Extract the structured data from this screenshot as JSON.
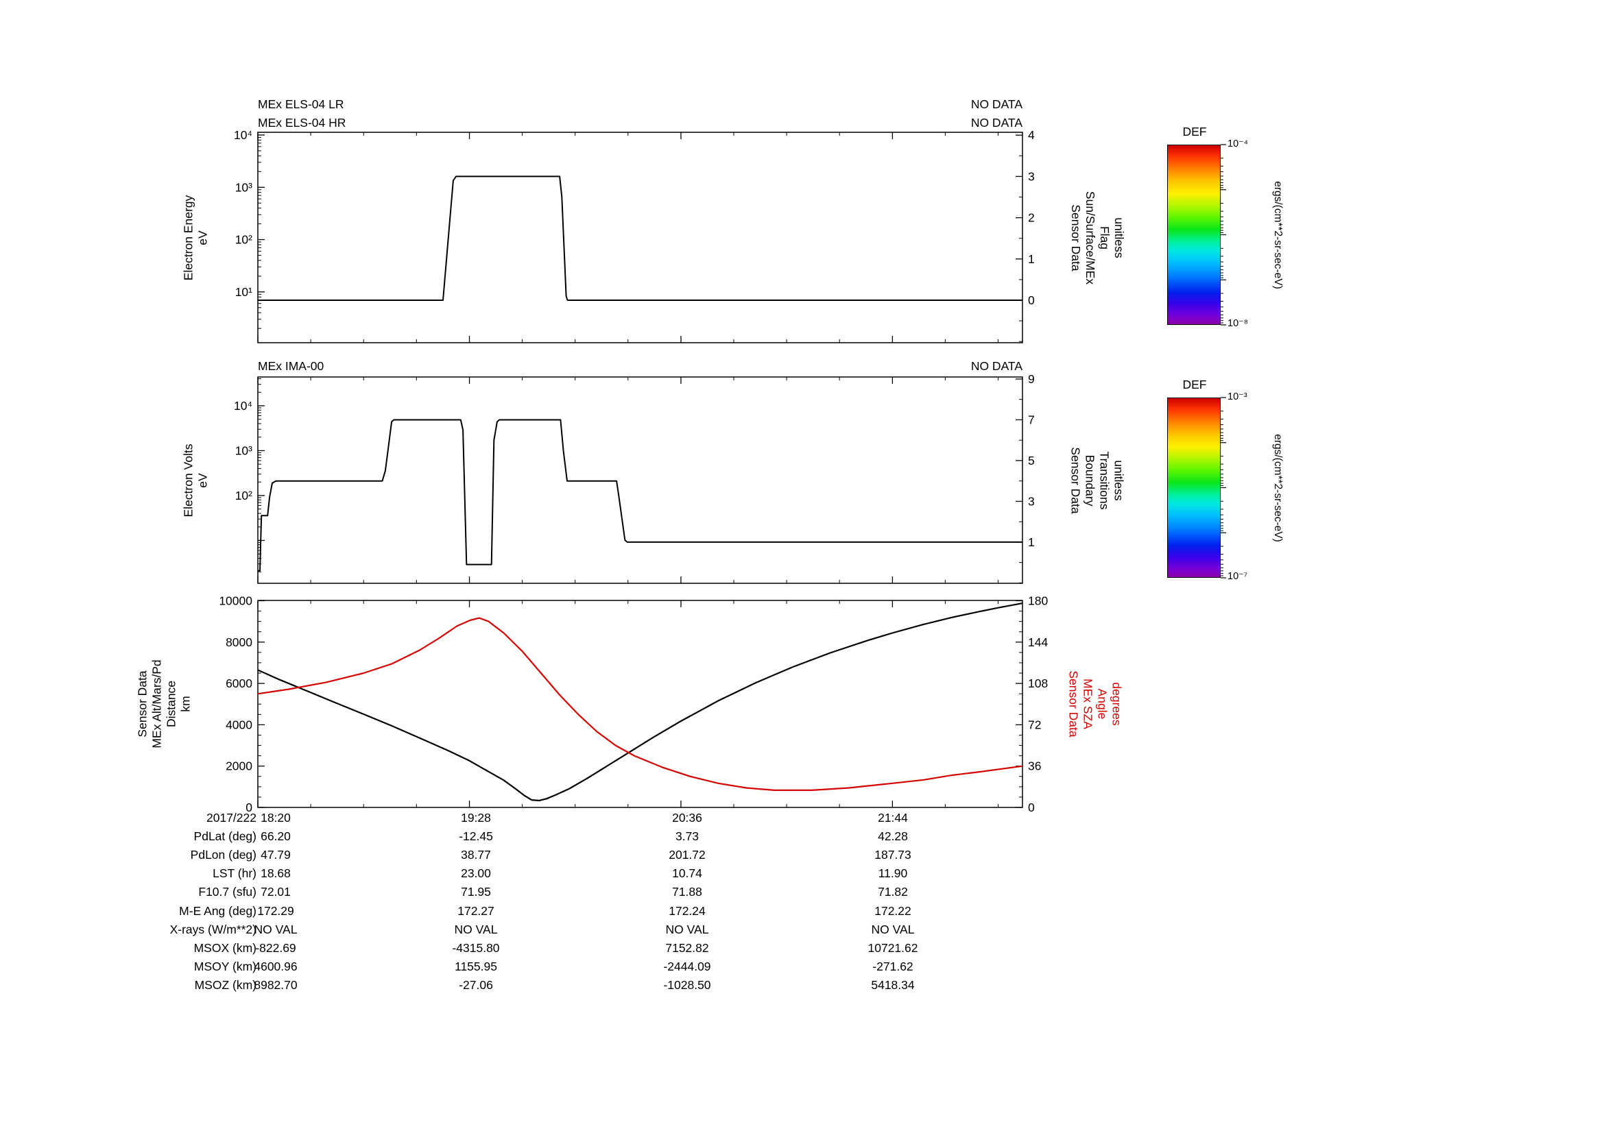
{
  "panels": [
    {
      "id": "els",
      "title_rows": [
        {
          "left": "MEx ELS-04 LR",
          "right": "NO DATA"
        },
        {
          "left": "MEx ELS-04 HR",
          "right": "NO DATA"
        }
      ],
      "left_axis_label": [
        "Electron Energy",
        "eV"
      ],
      "right_axis_label": [
        "Sensor Data",
        "Sun/Surface/MEx",
        "Flag",
        "unitless"
      ],
      "right_label_color": "#000000"
    },
    {
      "id": "ima",
      "title_rows": [
        {
          "left": "MEx IMA-00",
          "right": "NO DATA"
        }
      ],
      "left_axis_label": [
        "Electron Volts",
        "eV"
      ],
      "right_axis_label": [
        "Sensor Data",
        "Boundary",
        "Transitions",
        "unitless"
      ],
      "right_label_color": "#000000"
    },
    {
      "id": "ephem",
      "title_rows": [],
      "left_axis_label": [
        "Sensor Data",
        "MEx Alt/Mars/Pd",
        "Distance",
        "km"
      ],
      "right_axis_label": [
        "Sensor Data",
        "MEx SZA",
        "Angle",
        "degrees"
      ],
      "right_label_color": "#d40000"
    }
  ],
  "colorbars": [
    {
      "title": "DEF",
      "top_label": "10⁻⁴",
      "bottom_label": "10⁻⁸",
      "unit": "ergs/(cm**2-sr-sec-eV)"
    },
    {
      "title": "DEF",
      "top_label": "10⁻³",
      "bottom_label": "10⁻⁷",
      "unit": "ergs/(cm**2-sr-sec-eV)"
    }
  ],
  "colorbar_gradient": [
    "#cc0000 0%",
    "#ff3300 6%",
    "#ff8800 14%",
    "#ffcc00 21%",
    "#fdf000 27%",
    "#baf600 33%",
    "#62f600 40%",
    "#0ce619 47%",
    "#00efa0 54%",
    "#00e8e0 59%",
    "#00baff 66%",
    "#0076ff 74%",
    "#0022ee 82%",
    "#3a00e8 89%",
    "#7500d8 95%",
    "#8a00a8 100%"
  ],
  "table": {
    "rows": [
      {
        "label": "2017/222",
        "values": [
          "18:20",
          "19:28",
          "20:36",
          "21:44"
        ]
      },
      {
        "label": "PdLat (deg)",
        "values": [
          "66.20",
          "-12.45",
          "3.73",
          "42.28"
        ]
      },
      {
        "label": "PdLon (deg)",
        "values": [
          "47.79",
          "38.77",
          "201.72",
          "187.73"
        ]
      },
      {
        "label": "LST (hr)",
        "values": [
          "18.68",
          "23.00",
          "10.74",
          "11.90"
        ]
      },
      {
        "label": "F10.7 (sfu)",
        "values": [
          "72.01",
          "71.95",
          "71.88",
          "71.82"
        ]
      },
      {
        "label": "M-E Ang (deg)",
        "values": [
          "172.29",
          "172.27",
          "172.24",
          "172.22"
        ]
      },
      {
        "label": "X-rays (W/m**2)",
        "values": [
          "NO VAL",
          "NO VAL",
          "NO VAL",
          "NO VAL"
        ]
      },
      {
        "label": "MSOX (km)",
        "values": [
          "-822.69",
          "-4315.80",
          "7152.82",
          "10721.62"
        ]
      },
      {
        "label": "MSOY (km)",
        "values": [
          "4600.96",
          "1155.95",
          "-2444.09",
          "-271.62"
        ]
      },
      {
        "label": "MSOZ (km)",
        "values": [
          "8982.70",
          "-27.06",
          "-1028.50",
          "5418.34"
        ]
      }
    ]
  },
  "chart_data": [
    {
      "type": "line",
      "panel": "els",
      "name": "MEx ELS-04 Sun/Surface/MEx flag",
      "x_range": [
        18.333,
        22.43
      ],
      "x_major_ticks": [
        18.333,
        19.4667,
        20.6,
        21.7333
      ],
      "x_tick_labels": [
        "18:20",
        "19:28",
        "20:36",
        "21:44"
      ],
      "x_minor_step": 0.28333,
      "left_axis": {
        "scale": "log",
        "range_log10": [
          0.028,
          4.052
        ],
        "major_ticks": [
          {
            "log10": 4,
            "label": "10⁴"
          },
          {
            "log10": 3,
            "label": "10³"
          },
          {
            "log10": 2,
            "label": "10²"
          },
          {
            "log10": 1,
            "label": "10¹"
          }
        ]
      },
      "right_axis": {
        "scale": "linear",
        "range": [
          -1.03,
          4.07
        ],
        "minor_step": 0.5,
        "major_ticks": [
          {
            "v": 4,
            "label": "4"
          },
          {
            "v": 3,
            "label": "3"
          },
          {
            "v": 2,
            "label": "2"
          },
          {
            "v": 1,
            "label": "1"
          },
          {
            "v": 0,
            "label": "0"
          }
        ]
      },
      "series": [
        {
          "name": "sun-surface-flag",
          "axis": "right",
          "color": "#000000",
          "width": 2,
          "points": [
            [
              18.333,
              0
            ],
            [
              19.325,
              0
            ],
            [
              19.38,
              2.9
            ],
            [
              19.395,
              3
            ],
            [
              19.95,
              3
            ],
            [
              19.962,
              2.5
            ],
            [
              19.985,
              0.1
            ],
            [
              19.992,
              0
            ],
            [
              22.43,
              0
            ]
          ]
        }
      ]
    },
    {
      "type": "line",
      "panel": "ima",
      "name": "MEx IMA-00 boundary transitions",
      "x_range": [
        18.333,
        22.43
      ],
      "x_major_ticks": [
        18.333,
        19.4667,
        20.6,
        21.7333
      ],
      "x_tick_labels": [
        "18:20",
        "19:28",
        "20:36",
        "21:44"
      ],
      "x_minor_step": 0.28333,
      "left_axis": {
        "scale": "log",
        "range_log10": [
          0.045,
          4.641
        ],
        "major_ticks": [
          {
            "log10": 4,
            "label": "10⁴"
          },
          {
            "log10": 3,
            "label": "10³"
          },
          {
            "log10": 2,
            "label": "10²"
          }
        ]
      },
      "right_axis": {
        "scale": "linear",
        "range": [
          -1.02,
          9.1
        ],
        "minor_step": 1,
        "major_ticks": [
          {
            "v": 9,
            "label": "9"
          },
          {
            "v": 7,
            "label": "7"
          },
          {
            "v": 5,
            "label": "5"
          },
          {
            "v": 3,
            "label": "3"
          },
          {
            "v": 1,
            "label": "1"
          }
        ]
      },
      "series": [
        {
          "name": "boundary-transitions",
          "axis": "right",
          "color": "#000000",
          "width": 2,
          "points": [
            [
              18.333,
              -0.4
            ],
            [
              18.344,
              -0.4
            ],
            [
              18.352,
              2.3
            ],
            [
              18.385,
              2.3
            ],
            [
              18.396,
              3.2
            ],
            [
              18.41,
              3.9
            ],
            [
              18.43,
              4
            ],
            [
              19.0,
              4
            ],
            [
              19.016,
              4.5
            ],
            [
              19.05,
              6.9
            ],
            [
              19.062,
              7
            ],
            [
              19.42,
              7
            ],
            [
              19.432,
              6.5
            ],
            [
              19.451,
              -0.1
            ],
            [
              19.585,
              -0.1
            ],
            [
              19.598,
              6.0
            ],
            [
              19.615,
              6.9
            ],
            [
              19.627,
              7
            ],
            [
              19.955,
              7
            ],
            [
              19.97,
              5.5
            ],
            [
              19.99,
              4
            ],
            [
              20.255,
              4
            ],
            [
              20.268,
              3.2
            ],
            [
              20.3,
              1.1
            ],
            [
              20.312,
              1
            ],
            [
              22.43,
              1
            ]
          ]
        }
      ]
    },
    {
      "type": "line",
      "panel": "ephem",
      "name": "MEx altitude and solar zenith angle",
      "x_range": [
        18.333,
        22.43
      ],
      "x_major_ticks": [
        18.333,
        19.4667,
        20.6,
        21.7333
      ],
      "x_tick_labels": [
        "18:20",
        "19:28",
        "20:36",
        "21:44"
      ],
      "x_minor_step": 0.28333,
      "left_axis": {
        "scale": "linear",
        "range": [
          0,
          10016
        ],
        "minor_step": 500,
        "major_ticks": [
          {
            "v": 10000,
            "label": "10000"
          },
          {
            "v": 8000,
            "label": "8000"
          },
          {
            "v": 6000,
            "label": "6000"
          },
          {
            "v": 4000,
            "label": "4000"
          },
          {
            "v": 2000,
            "label": "2000"
          },
          {
            "v": 0,
            "label": "0"
          }
        ]
      },
      "right_axis": {
        "scale": "linear",
        "range": [
          0,
          180.3
        ],
        "minor_step": 9,
        "major_ticks": [
          {
            "v": 180,
            "label": "180"
          },
          {
            "v": 144,
            "label": "144"
          },
          {
            "v": 108,
            "label": "108"
          },
          {
            "v": 72,
            "label": "72"
          },
          {
            "v": 36,
            "label": "36"
          },
          {
            "v": 0,
            "label": "0"
          }
        ]
      },
      "series": [
        {
          "name": "mex-altitude-km",
          "axis": "left",
          "color": "#000000",
          "width": 2.2,
          "points": [
            [
              18.333,
              6650
            ],
            [
              18.45,
              6180
            ],
            [
              18.6,
              5620
            ],
            [
              18.75,
              5060
            ],
            [
              18.9,
              4510
            ],
            [
              19.05,
              3950
            ],
            [
              19.2,
              3360
            ],
            [
              19.35,
              2760
            ],
            [
              19.467,
              2260
            ],
            [
              19.55,
              1830
            ],
            [
              19.65,
              1320
            ],
            [
              19.72,
              860
            ],
            [
              19.76,
              580
            ],
            [
              19.8,
              360
            ],
            [
              19.84,
              330
            ],
            [
              19.88,
              420
            ],
            [
              19.93,
              610
            ],
            [
              20.0,
              900
            ],
            [
              20.1,
              1420
            ],
            [
              20.2,
              1980
            ],
            [
              20.3,
              2540
            ],
            [
              20.45,
              3380
            ],
            [
              20.6,
              4180
            ],
            [
              20.8,
              5160
            ],
            [
              21.0,
              6030
            ],
            [
              21.2,
              6800
            ],
            [
              21.4,
              7480
            ],
            [
              21.6,
              8080
            ],
            [
              21.733,
              8440
            ],
            [
              21.9,
              8860
            ],
            [
              22.05,
              9190
            ],
            [
              22.2,
              9480
            ],
            [
              22.3,
              9660
            ],
            [
              22.43,
              9880
            ]
          ]
        },
        {
          "name": "mex-sza-degrees",
          "axis": "right",
          "color": "#d40000",
          "width": 2.2,
          "points": [
            [
              18.333,
              99
            ],
            [
              18.5,
              103
            ],
            [
              18.7,
              109
            ],
            [
              18.9,
              117
            ],
            [
              19.05,
              125
            ],
            [
              19.2,
              137
            ],
            [
              19.3,
              147
            ],
            [
              19.4,
              158
            ],
            [
              19.47,
              163
            ],
            [
              19.52,
              165
            ],
            [
              19.57,
              162
            ],
            [
              19.65,
              152
            ],
            [
              19.75,
              136
            ],
            [
              19.85,
              117
            ],
            [
              19.95,
              98
            ],
            [
              20.05,
              81
            ],
            [
              20.15,
              66
            ],
            [
              20.25,
              54
            ],
            [
              20.35,
              45
            ],
            [
              20.5,
              35
            ],
            [
              20.65,
              27
            ],
            [
              20.8,
              21
            ],
            [
              20.95,
              17
            ],
            [
              21.1,
              15
            ],
            [
              21.3,
              15
            ],
            [
              21.5,
              17
            ],
            [
              21.733,
              21
            ],
            [
              21.9,
              24
            ],
            [
              22.05,
              28
            ],
            [
              22.2,
              31
            ],
            [
              22.43,
              36
            ]
          ]
        }
      ]
    }
  ]
}
